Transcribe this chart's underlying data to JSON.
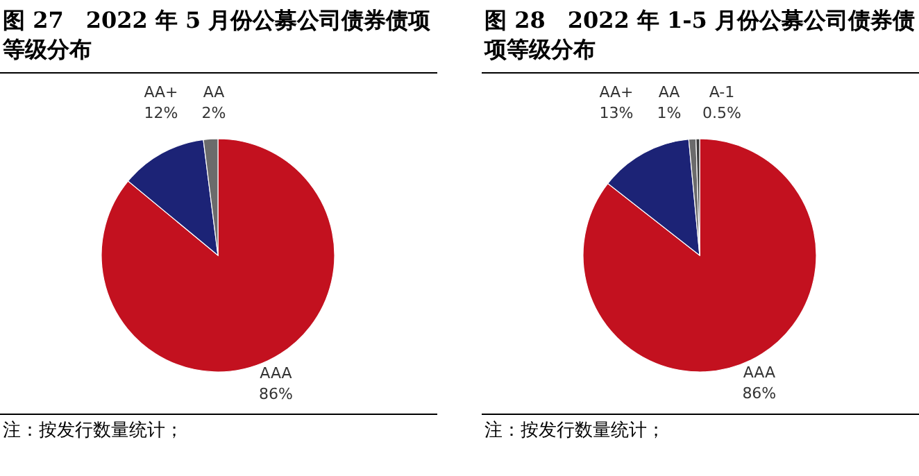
{
  "chart_data": [
    {
      "type": "pie",
      "title": "图 27　2022 年 5 月份公募公司债券债项等级分布",
      "categories": [
        "AAA",
        "AA+",
        "AA"
      ],
      "values": [
        86,
        12,
        2
      ],
      "colors": [
        "#c3111f",
        "#1c2376",
        "#6b6b6b"
      ],
      "value_labels": [
        "86%",
        "12%",
        "2%"
      ],
      "annotations": [
        "注：按发行数量统计；"
      ]
    },
    {
      "type": "pie",
      "title": "图 28　2022 年 1-5 月份公募公司债券债项等级分布",
      "categories": [
        "AAA",
        "AA+",
        "AA",
        "A-1"
      ],
      "values": [
        86,
        13,
        1,
        0.5
      ],
      "colors": [
        "#c3111f",
        "#1c2376",
        "#6b6b6b",
        "#3a3a3a"
      ],
      "value_labels": [
        "86%",
        "13%",
        "1%",
        "0.5%"
      ],
      "annotations": [
        "注：按发行数量统计；"
      ]
    }
  ]
}
